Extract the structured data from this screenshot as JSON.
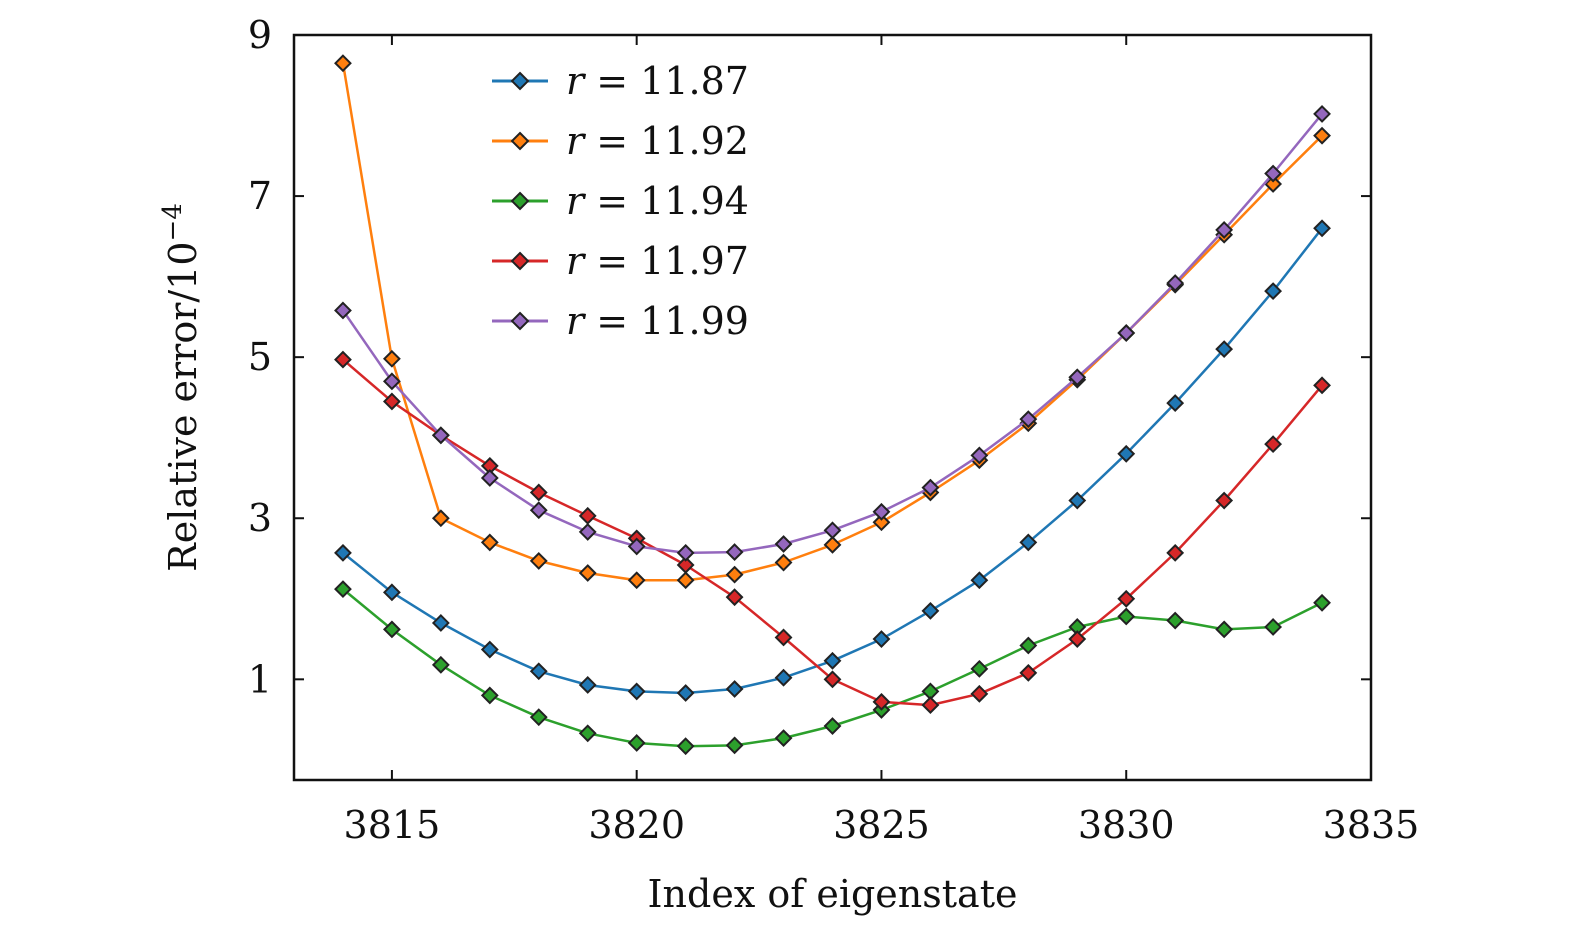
{
  "chart_data": {
    "type": "line",
    "title": "",
    "xlabel": "Index of eigenstate",
    "ylabel": "Relative error/10",
    "ylabel_exponent": "−4",
    "xlim": [
      3813.0,
      3835.0
    ],
    "ylim": [
      -0.25,
      9.0
    ],
    "xticks": [
      3815,
      3820,
      3825,
      3830,
      3835
    ],
    "yticks": [
      1,
      3,
      5,
      7,
      9
    ],
    "grid": false,
    "legend_position": "top-left",
    "x": [
      3814,
      3815,
      3816,
      3817,
      3818,
      3819,
      3820,
      3821,
      3822,
      3823,
      3824,
      3825,
      3826,
      3827,
      3828,
      3829,
      3830,
      3831,
      3832,
      3833,
      3834
    ],
    "series": [
      {
        "name": "r = 11.87",
        "legend_var": "r",
        "legend_value": "= 11.87",
        "color": "#1f77b4",
        "values": [
          2.57,
          2.08,
          1.7,
          1.37,
          1.1,
          0.93,
          0.85,
          0.83,
          0.88,
          1.02,
          1.23,
          1.5,
          1.85,
          2.23,
          2.7,
          3.22,
          3.8,
          4.43,
          5.1,
          5.82,
          6.6
        ]
      },
      {
        "name": "r = 11.92",
        "legend_var": "r",
        "legend_value": "= 11.92",
        "color": "#ff7f0e",
        "values": [
          8.65,
          4.98,
          3.0,
          2.7,
          2.47,
          2.32,
          2.23,
          2.23,
          2.3,
          2.45,
          2.67,
          2.95,
          3.32,
          3.72,
          4.18,
          4.72,
          5.3,
          5.9,
          6.52,
          7.15,
          7.75
        ]
      },
      {
        "name": "r = 11.94",
        "legend_var": "r",
        "legend_value": "= 11.94",
        "color": "#2ca02c",
        "values": [
          2.12,
          1.62,
          1.18,
          0.8,
          0.53,
          0.33,
          0.21,
          0.17,
          0.18,
          0.27,
          0.42,
          0.62,
          0.85,
          1.13,
          1.42,
          1.65,
          1.78,
          1.73,
          1.62,
          1.65,
          1.95
        ]
      },
      {
        "name": "r = 11.97",
        "legend_var": "r",
        "legend_value": "= 11.97",
        "color": "#d62728",
        "values": [
          4.97,
          4.45,
          4.03,
          3.65,
          3.32,
          3.03,
          2.75,
          2.42,
          2.02,
          1.52,
          1.0,
          0.72,
          0.68,
          0.82,
          1.08,
          1.5,
          2.0,
          2.57,
          3.22,
          3.92,
          4.65
        ]
      },
      {
        "name": "r = 11.99",
        "legend_var": "r",
        "legend_value": "= 11.99",
        "color": "#9467bd",
        "values": [
          5.58,
          4.7,
          4.03,
          3.5,
          3.1,
          2.83,
          2.65,
          2.57,
          2.58,
          2.68,
          2.85,
          3.08,
          3.38,
          3.78,
          4.23,
          4.75,
          5.3,
          5.92,
          6.58,
          7.28,
          8.02
        ]
      }
    ]
  }
}
